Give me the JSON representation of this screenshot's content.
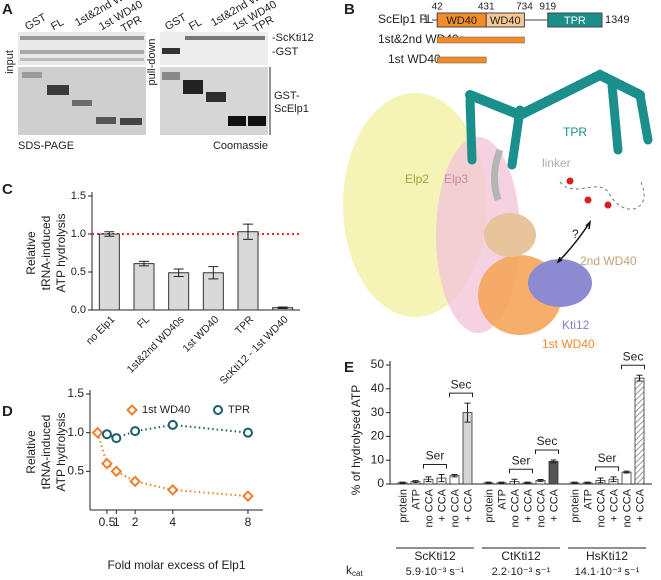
{
  "panel_labels": [
    "A",
    "B",
    "C",
    "D",
    "E"
  ],
  "gel": {
    "lanes": [
      "GST",
      "FL",
      "1st&2nd WD40s",
      "1st WD40",
      "TPR"
    ],
    "input": "input",
    "pulldown": "pull-down",
    "stain_left": "SDS-PAGE",
    "stain_right": "Coomassie",
    "bands": [
      "-ScKti12",
      "-GST"
    ],
    "fusion": [
      "GST-",
      "ScElp1"
    ]
  },
  "domain_map": {
    "name": "ScElp1 FL",
    "start": 1,
    "end": 1349,
    "domains": [
      {
        "label": "WD40",
        "start": 42,
        "end": 431,
        "color": "#f28c28"
      },
      {
        "label": "WD40",
        "end": 734,
        "color": "#f7c894"
      },
      {
        "label": "TPR",
        "start": 919,
        "color": "#1a8f8c"
      }
    ],
    "constructs": [
      {
        "label": "1st&2nd WD40s"
      },
      {
        "label": "1st WD40"
      }
    ]
  },
  "structure": {
    "labels": [
      "TPR",
      "linker",
      "Elp2",
      "Elp3",
      "?",
      "2nd WD40",
      "Kti12",
      "1st WD40"
    ]
  },
  "chart_data": [
    {
      "type": "bar",
      "ylabel": [
        "Relative",
        "tRNA-induced",
        "ATP hydrolysis"
      ],
      "categories": [
        "no Elp1",
        "FL",
        "1st&2nd WD40s",
        "1st WD40",
        "TPR",
        "ScKti12 - 1st WD40"
      ],
      "values": [
        1.0,
        0.61,
        0.49,
        0.49,
        1.03,
        0.03
      ],
      "errors": [
        0.03,
        0.03,
        0.05,
        0.08,
        0.1,
        0.01
      ],
      "color": "#d9d9d9",
      "ylim": [
        0,
        1.5
      ],
      "yticks": [
        {
          "value": 0,
          "label": "0.0"
        },
        {
          "value": 0.5,
          "label": "0.5"
        },
        {
          "value": 1,
          "label": "1.0"
        },
        {
          "value": 1.5,
          "label": "1.5"
        }
      ],
      "reference_line": 1,
      "reference_color": "#e8291c"
    },
    {
      "type": "scatter",
      "ylabel": [
        "Relative",
        "tRNA-induced",
        "ATP hydrolysis"
      ],
      "xlabel": "Fold molar excess of Elp1",
      "series": [
        {
          "name": "1st WD40",
          "color": "#f07f2d",
          "marker": "diamond",
          "x": [
            0,
            0.5,
            1,
            2,
            4,
            8
          ],
          "values": [
            1.0,
            0.6,
            0.5,
            0.37,
            0.26,
            0.18
          ]
        },
        {
          "name": "TPR",
          "color": "#1b5e6b",
          "marker": "circle",
          "x": [
            0.5,
            1,
            2,
            4,
            8
          ],
          "values": [
            0.98,
            0.93,
            1.02,
            1.1,
            1.0
          ]
        }
      ],
      "xlim": [
        -0.4,
        8.8
      ],
      "xticks": [
        0.5,
        1,
        2,
        4,
        8
      ],
      "ylim": [
        0,
        1.5
      ],
      "yticks": [
        {
          "value": 0.5,
          "label": "0.5"
        },
        {
          "value": 1,
          "label": "1.0"
        },
        {
          "value": 1.5,
          "label": "1.5"
        }
      ]
    },
    {
      "type": "grouped_bar",
      "ylabel": "% of hydrolysed ATP",
      "ylim": [
        0,
        50
      ],
      "yticks": [
        0,
        10,
        20,
        30,
        40,
        50
      ],
      "rate_symbol": "k",
      "rate_subscript": "cat",
      "groups": [
        {
          "name": "ScKti12",
          "rate": "5.9·10⁻³ s⁻¹",
          "categories": [
            "protein",
            "ATP",
            "no CCA",
            "+ CCA",
            "no CCA",
            "+ CCA"
          ],
          "brackets": [
            "Ser",
            "Sec"
          ],
          "values": [
            0.5,
            1,
            2,
            2.5,
            3.5,
            30
          ],
          "errors": [
            0.3,
            0.4,
            1,
            1.5,
            0.5,
            4
          ],
          "colors": [
            "#ffffff",
            "#ffffff",
            "#ffffff",
            "#ffffff",
            "#ffffff",
            "#d4d4d4"
          ]
        },
        {
          "name": "CtKti12",
          "rate": "2.2·10⁻³ s⁻¹",
          "categories": [
            "protein",
            "ATP",
            "no CCA",
            "+ CCA",
            "no CCA",
            "+ CCA"
          ],
          "brackets": [
            "Ser",
            "Sec"
          ],
          "values": [
            0.5,
            0.5,
            1,
            0.5,
            1.5,
            9.5
          ],
          "errors": [
            0.3,
            0.3,
            1,
            0.3,
            0.4,
            0.6
          ],
          "colors": [
            "#ffffff",
            "#ffffff",
            "#ffffff",
            "#ffffff",
            "#ffffff",
            "#555555"
          ]
        },
        {
          "name": "HsKti12",
          "rate": "14.1·10⁻³ s⁻¹",
          "categories": [
            "protein",
            "ATP",
            "no CCA",
            "+ CCA",
            "no CCA",
            "+ CCA"
          ],
          "brackets": [
            "Ser",
            "Sec"
          ],
          "values": [
            0.5,
            0.5,
            1.5,
            2,
            5,
            44.5
          ],
          "errors": [
            0.3,
            0.3,
            1,
            1,
            0.4,
            1.2
          ],
          "colors": [
            "#ffffff",
            "#ffffff",
            "#ffffff",
            "#ffffff",
            "#ffffff",
            "#ffffff"
          ],
          "hatched": true
        }
      ]
    }
  ]
}
